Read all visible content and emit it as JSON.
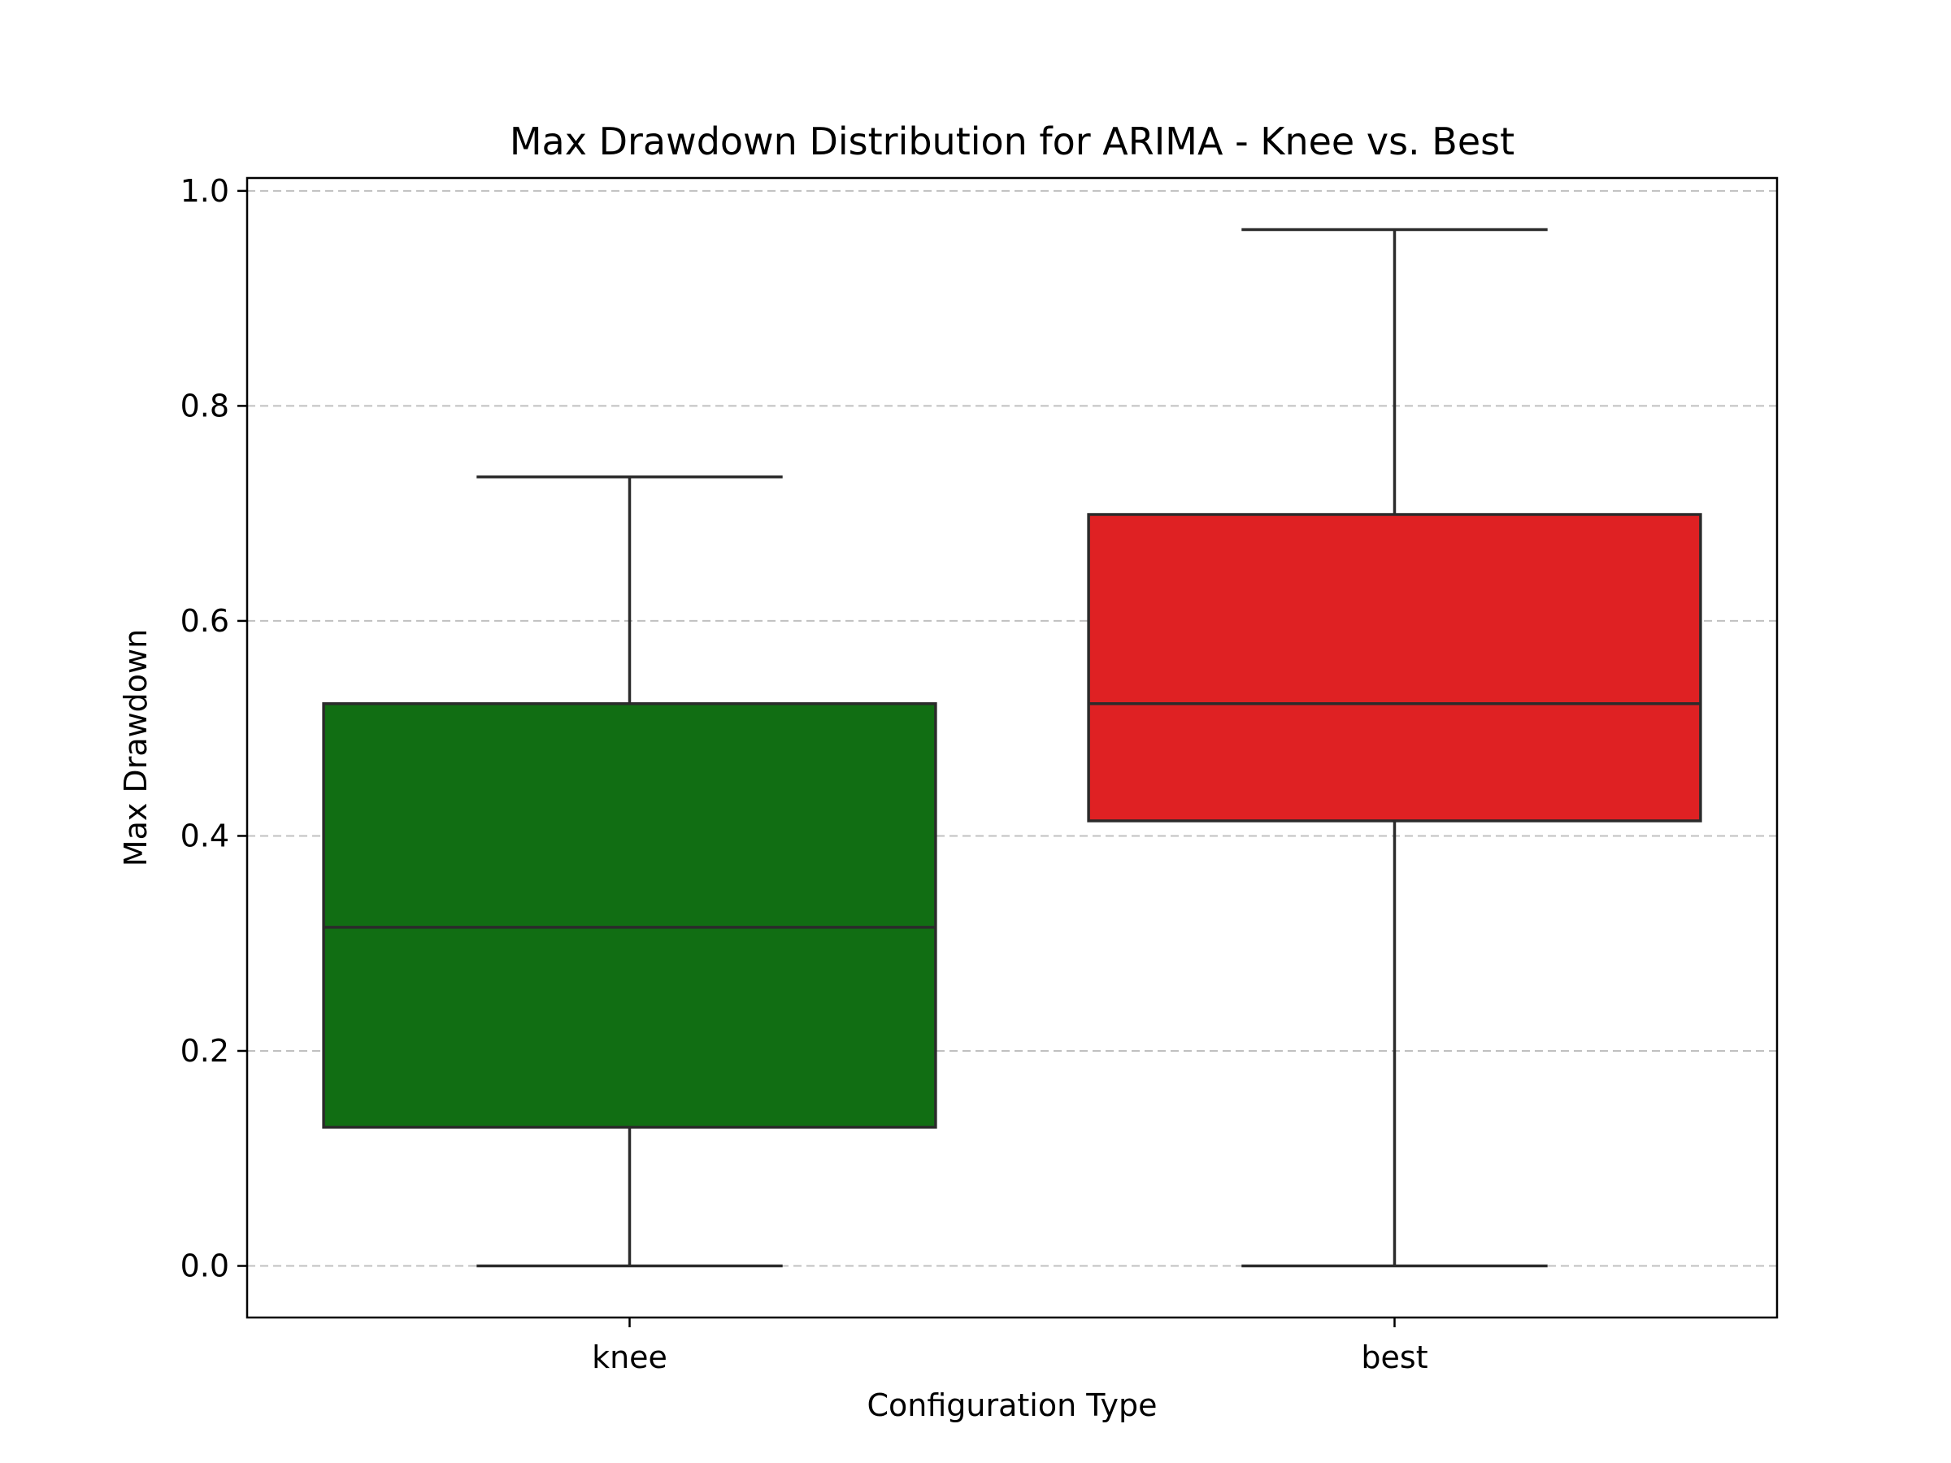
{
  "chart_data": {
    "type": "box",
    "title": "Max Drawdown Distribution for ARIMA - Knee vs. Best",
    "xlabel": "Configuration Type",
    "ylabel": "Max Drawdown",
    "ylim": [
      -0.048,
      1.012
    ],
    "yticks": [
      {
        "value": 0.0,
        "label": "0.0"
      },
      {
        "value": 0.2,
        "label": "0.2"
      },
      {
        "value": 0.4,
        "label": "0.4"
      },
      {
        "value": 0.6,
        "label": "0.6"
      },
      {
        "value": 0.8,
        "label": "0.8"
      },
      {
        "value": 1.0,
        "label": "1.0"
      }
    ],
    "grid": "y-dashed",
    "categories": [
      "knee",
      "best"
    ],
    "boxes": [
      {
        "category": "knee",
        "whisker_low": 0.0,
        "q1": 0.129,
        "median": 0.315,
        "q3": 0.523,
        "whisker_high": 0.734,
        "color": "#116e13"
      },
      {
        "category": "best",
        "whisker_low": 0.0,
        "q1": 0.414,
        "median": 0.523,
        "q3": 0.699,
        "whisker_high": 0.964,
        "color": "#df2123"
      }
    ]
  }
}
